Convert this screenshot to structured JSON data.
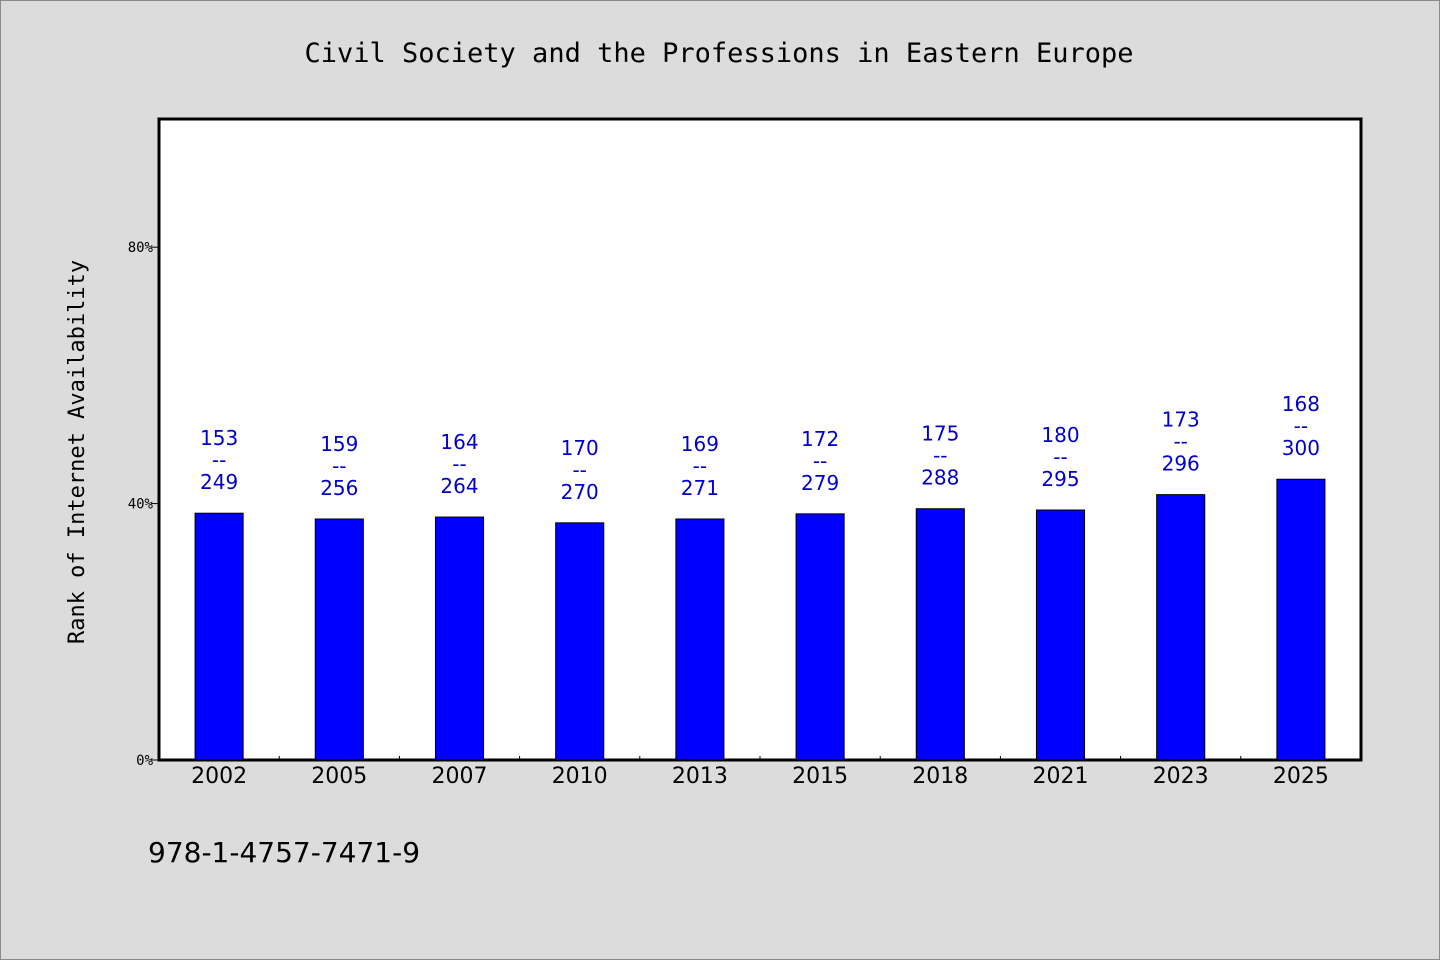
{
  "colors": {
    "bar": "#0000ff",
    "bar_edge": "#000000",
    "label": "#0000cc",
    "plot_bg": "#ffffff",
    "page_bg": "#dcdcdc"
  },
  "footer": {
    "isbn": "978-1-4757-7471-9"
  },
  "chart_data": {
    "type": "bar",
    "title": "Civil Society and the Professions in Eastern Europe",
    "xlabel": "",
    "ylabel": "Rank of Internet Availability",
    "ylim": [
      0,
      1.0
    ],
    "yticks": [
      0,
      0.4,
      0.8
    ],
    "ytick_labels": [
      "0%",
      "40%",
      "80%"
    ],
    "grid": false,
    "categories": [
      "2002",
      "2005",
      "2007",
      "2010",
      "2013",
      "2015",
      "2018",
      "2021",
      "2023",
      "2025"
    ],
    "values": [
      0.385,
      0.376,
      0.379,
      0.37,
      0.376,
      0.384,
      0.392,
      0.39,
      0.414,
      0.438
    ],
    "rank": [
      153,
      159,
      164,
      170,
      169,
      172,
      175,
      180,
      173,
      168
    ],
    "total": [
      249,
      256,
      264,
      270,
      271,
      279,
      288,
      295,
      296,
      300
    ],
    "separator": "--"
  }
}
